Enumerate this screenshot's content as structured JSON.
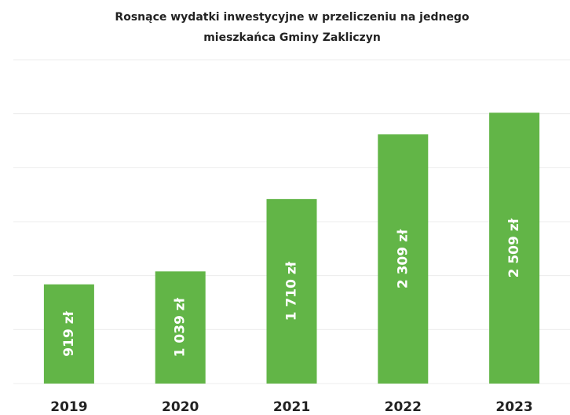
{
  "chart_data": {
    "type": "bar",
    "title": "Rosnące wydatki inwestycyjne w przeliczeniu na jednego mieszkańca Gminy Zakliczyn",
    "categories": [
      "2019",
      "2020",
      "2021",
      "2022",
      "2023"
    ],
    "values": [
      919,
      1039,
      1710,
      2309,
      2509
    ],
    "value_labels": [
      "919 zł",
      "1 039 zł",
      "1 710 zł",
      "2 309 zł",
      "2 509 zł"
    ],
    "color": "#62b547",
    "ylim": [
      0,
      3000
    ],
    "yticks": [
      0,
      500,
      1000,
      1500,
      2000,
      2500,
      3000
    ],
    "grid": true
  }
}
